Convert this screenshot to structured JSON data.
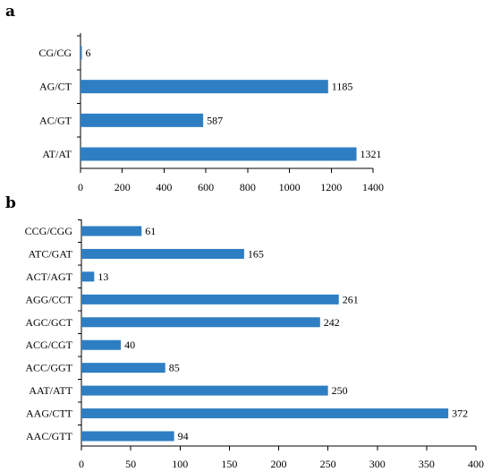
{
  "colors": {
    "bar": "#2e7ec3",
    "axis": "#000000",
    "background": "#ffffff"
  },
  "chart_data": [
    {
      "panel": "a",
      "type": "bar",
      "orientation": "horizontal",
      "categories": [
        "AT/AT",
        "AC/GT",
        "AG/CT",
        "CG/CG"
      ],
      "values": [
        1321,
        587,
        1185,
        6
      ],
      "xlim": [
        0,
        1400
      ],
      "xticks": [
        0,
        200,
        400,
        600,
        800,
        1000,
        1200,
        1400
      ],
      "data_labels": true,
      "grid": false,
      "legend": "none"
    },
    {
      "panel": "b",
      "type": "bar",
      "orientation": "horizontal",
      "categories": [
        "AAC/GTT",
        "AAG/CTT",
        "AAT/ATT",
        "ACC/GGT",
        "ACG/CGT",
        "AGC/GCT",
        "AGG/CCT",
        "ACT/AGT",
        "ATC/GAT",
        "CCG/CGG"
      ],
      "values": [
        94,
        372,
        250,
        85,
        40,
        242,
        261,
        13,
        165,
        61
      ],
      "xlim": [
        0,
        400
      ],
      "xticks": [
        0,
        50,
        100,
        150,
        200,
        250,
        300,
        350,
        400
      ],
      "data_labels": true,
      "grid": false,
      "legend": "none"
    }
  ]
}
